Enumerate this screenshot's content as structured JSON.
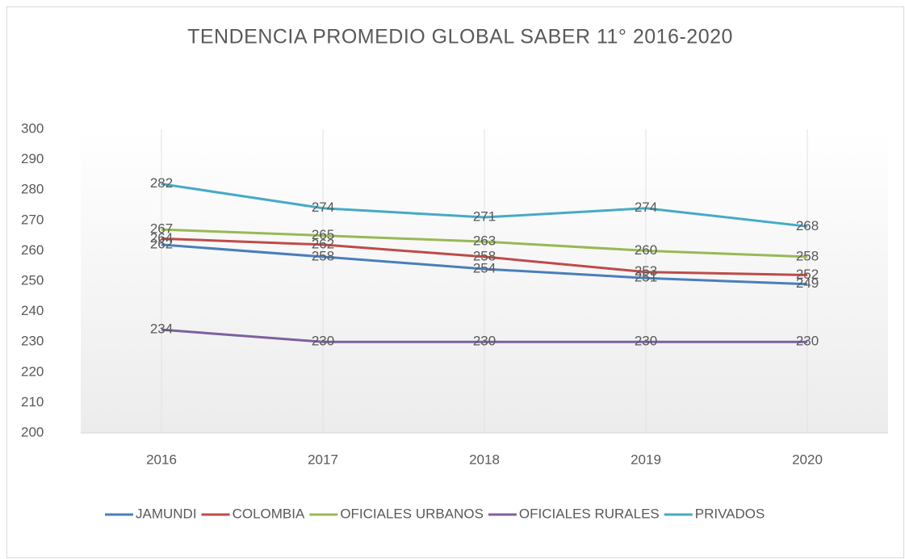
{
  "chart_data": {
    "type": "line",
    "title": "TENDENCIA PROMEDIO GLOBAL SABER 11° 2016-2020",
    "categories": [
      "2016",
      "2017",
      "2018",
      "2019",
      "2020"
    ],
    "series": [
      {
        "name": "JAMUNDI",
        "color": "#4a7ebb",
        "values": [
          262,
          258,
          254,
          251,
          249
        ]
      },
      {
        "name": "COLOMBIA",
        "color": "#be4b48",
        "values": [
          264,
          262,
          258,
          253,
          252
        ]
      },
      {
        "name": "OFICIALES URBANOS",
        "color": "#98b954",
        "values": [
          267,
          265,
          263,
          260,
          258
        ]
      },
      {
        "name": "OFICIALES RURALES",
        "color": "#7d60a0",
        "values": [
          234,
          230,
          230,
          230,
          230
        ]
      },
      {
        "name": "PRIVADOS",
        "color": "#46aac5",
        "values": [
          282,
          274,
          271,
          274,
          268
        ]
      }
    ],
    "ylim": [
      200,
      300
    ],
    "yticks": [
      200,
      210,
      220,
      230,
      240,
      250,
      260,
      270,
      280,
      290,
      300
    ],
    "grid": true,
    "legend": "bottom"
  }
}
